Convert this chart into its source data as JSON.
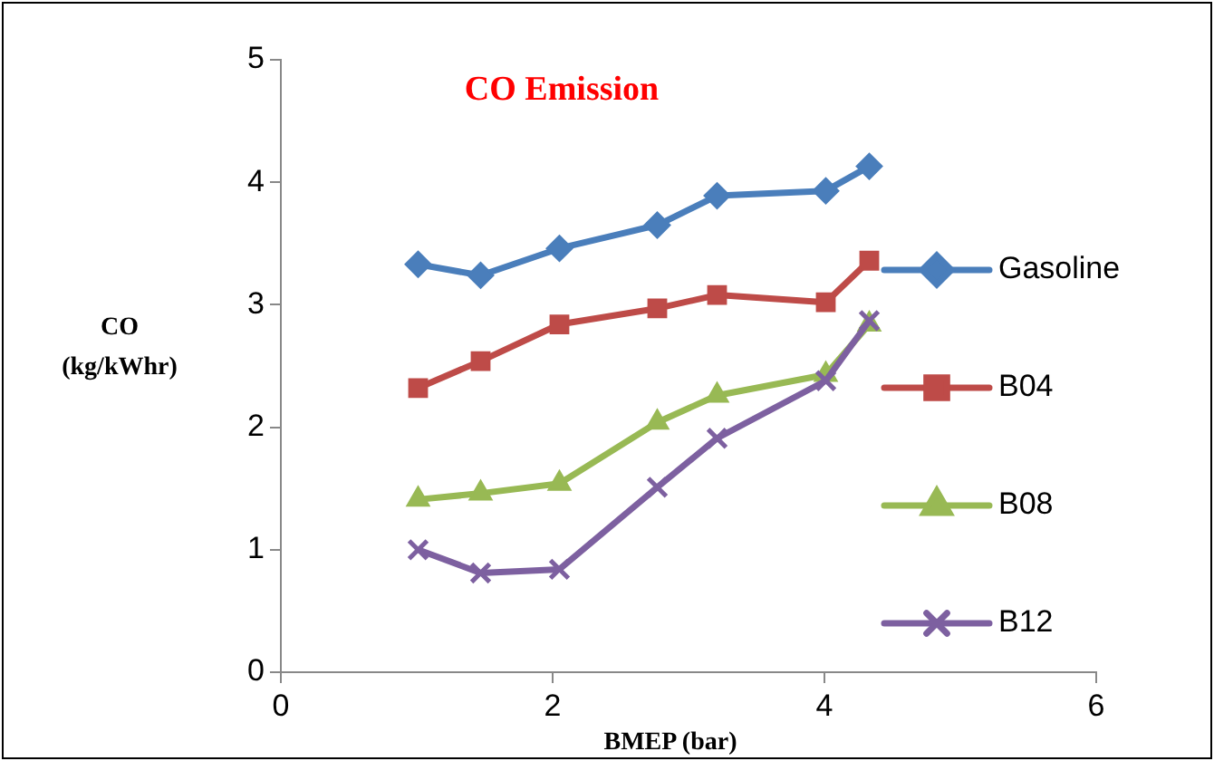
{
  "chart_data": {
    "type": "line",
    "title": "CO Emission",
    "xlabel": "BMEP (bar)",
    "ylabel": "CO\n(kg/kWhr)",
    "xlim": [
      0,
      6
    ],
    "xticks": [
      0,
      2,
      4,
      6
    ],
    "ylim": [
      0,
      5
    ],
    "yticks": [
      0,
      1,
      2,
      3,
      4,
      5
    ],
    "grid": false,
    "legend": "right",
    "series": [
      {
        "name": "Gasoline",
        "color": "#4a7ebb",
        "marker": "diamond",
        "x": [
          1.01,
          1.47,
          2.05,
          2.77,
          3.21,
          4.01,
          4.33
        ],
        "values": [
          3.33,
          3.24,
          3.46,
          3.65,
          3.89,
          3.93,
          4.13
        ]
      },
      {
        "name": "B04",
        "color": "#be4b48",
        "marker": "square",
        "x": [
          1.01,
          1.47,
          2.05,
          2.77,
          3.21,
          4.01,
          4.33
        ],
        "values": [
          2.32,
          2.54,
          2.84,
          2.97,
          3.08,
          3.02,
          3.36
        ]
      },
      {
        "name": "B08",
        "color": "#98b954",
        "marker": "triangle",
        "x": [
          1.01,
          1.47,
          2.05,
          2.77,
          3.21,
          4.01,
          4.33
        ],
        "values": [
          1.41,
          1.46,
          1.54,
          2.04,
          2.26,
          2.43,
          2.84
        ]
      },
      {
        "name": "B12",
        "color": "#7d60a0",
        "marker": "cross",
        "x": [
          1.01,
          1.47,
          2.05,
          2.77,
          3.21,
          4.01,
          4.33
        ],
        "values": [
          1.0,
          0.81,
          0.84,
          1.51,
          1.91,
          2.38,
          2.87
        ]
      }
    ]
  }
}
